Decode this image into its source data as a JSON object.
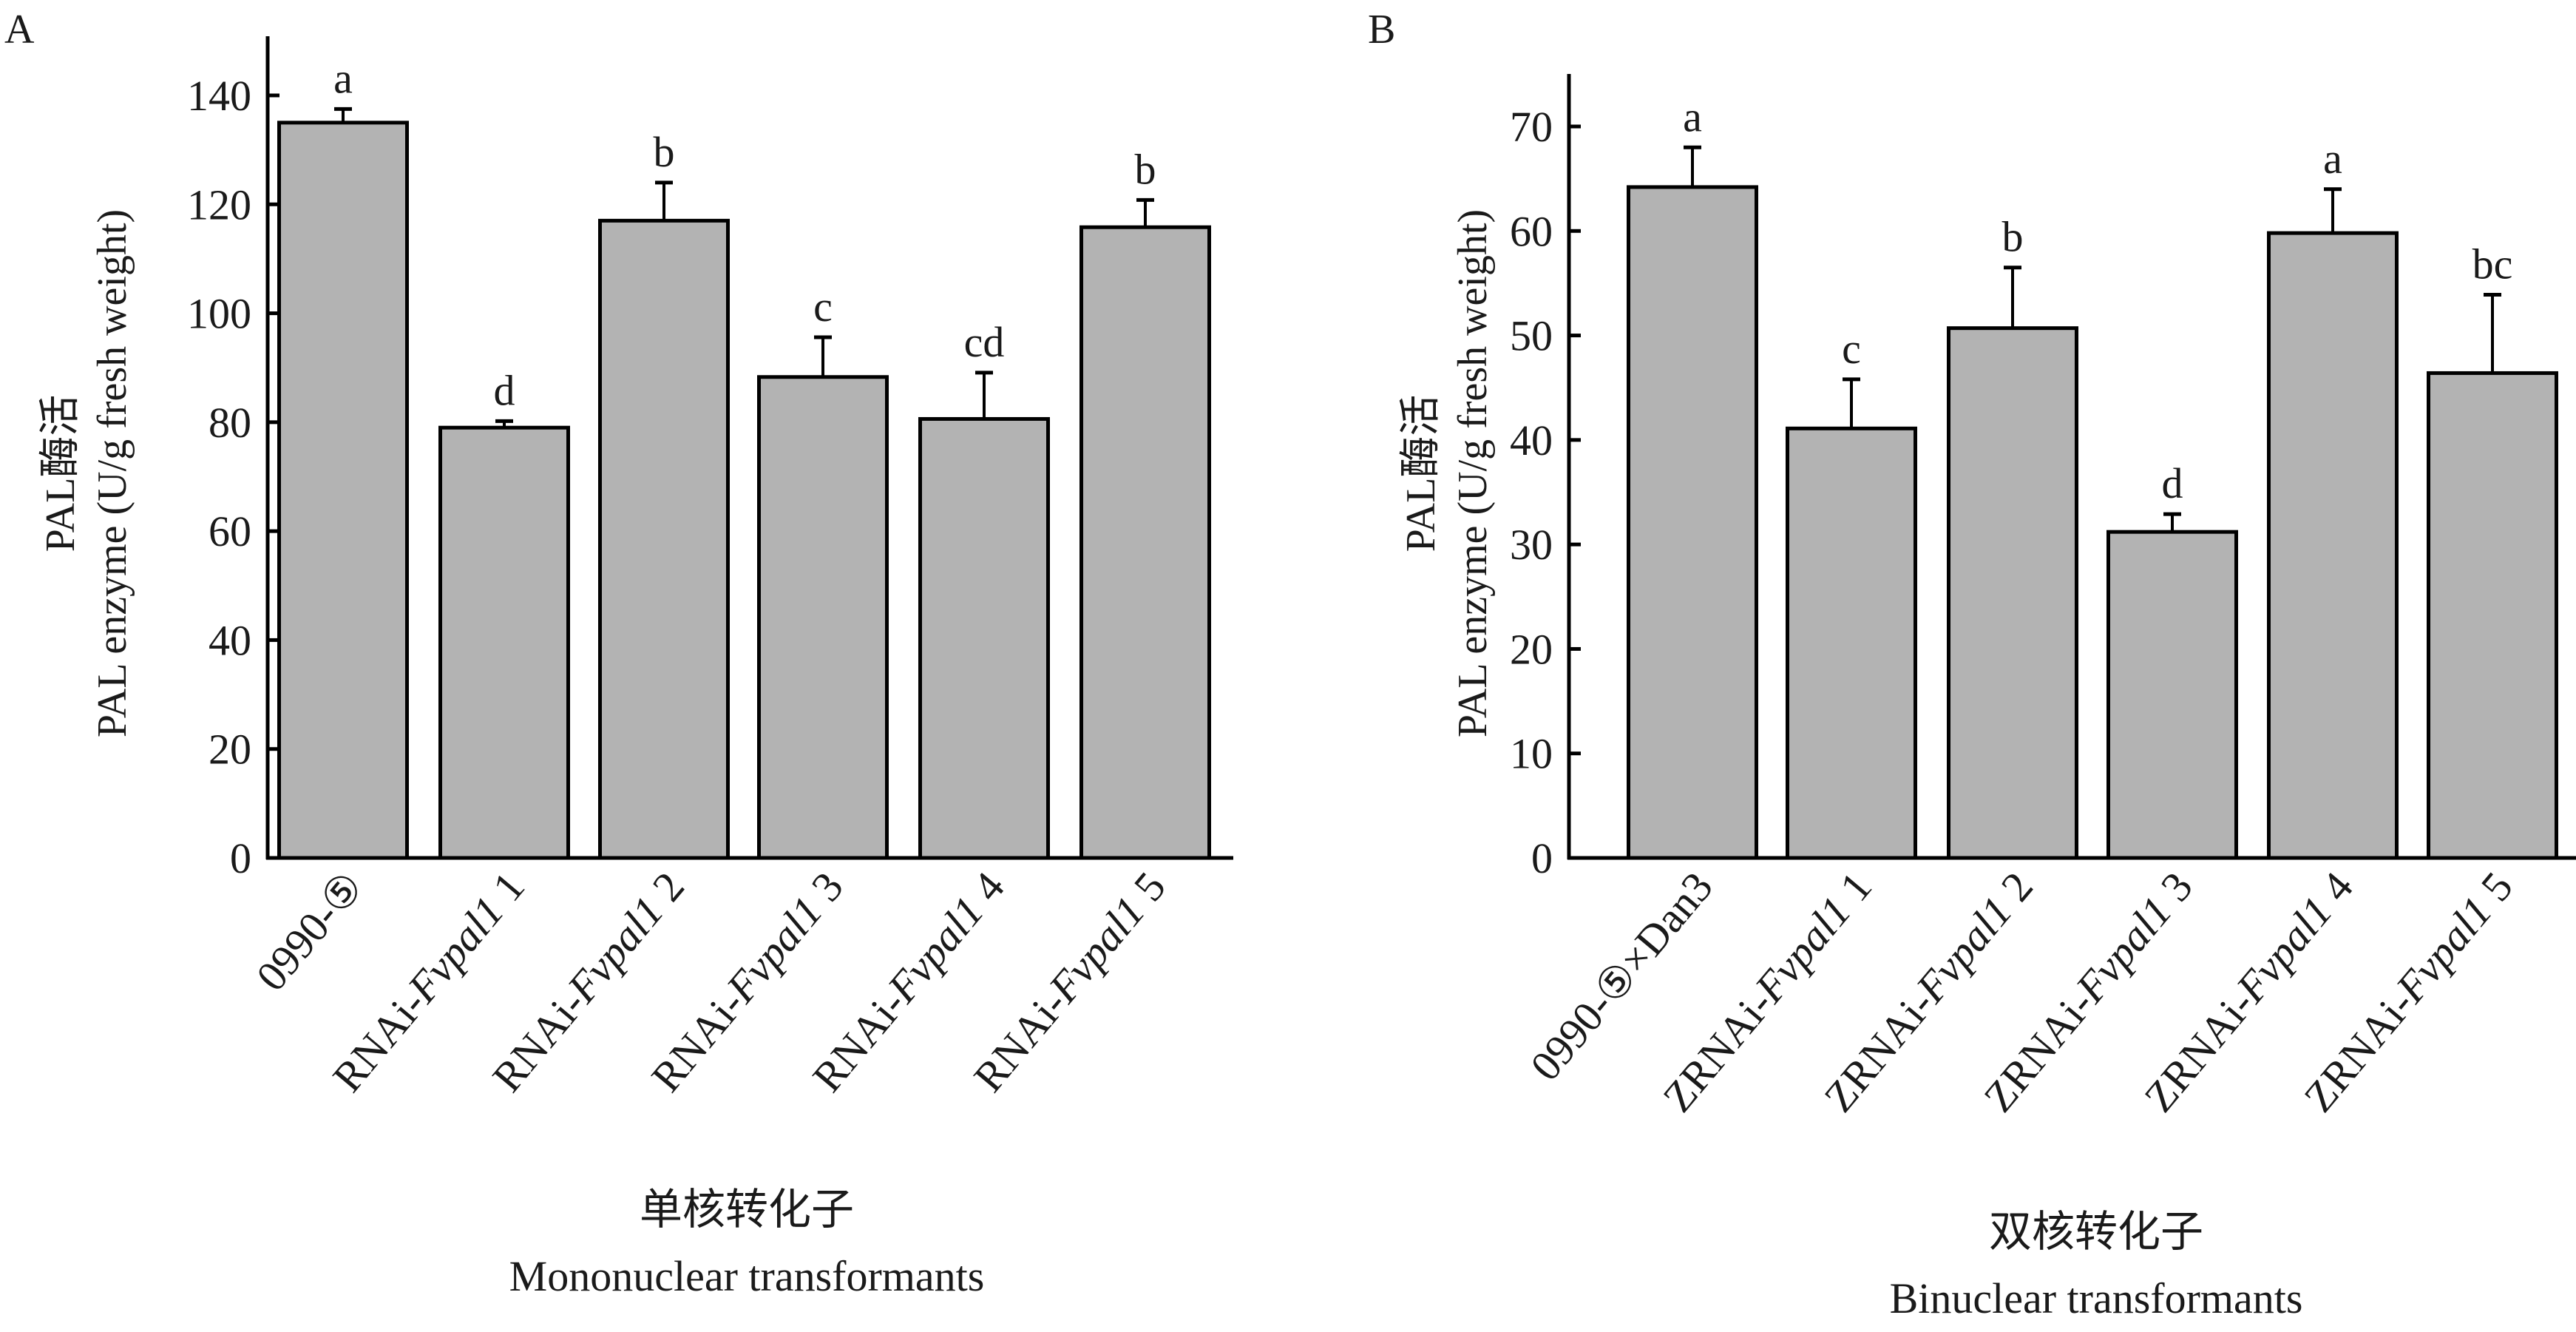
{
  "chart_data": [
    {
      "panel_label": "A",
      "type": "bar",
      "ylabel_cn": "PAL酶活",
      "ylabel_en": "PAL enzyme (U/g fresh weight)",
      "xlabel_cn": "单核转化子",
      "xlabel_en": "Mononuclear transformants",
      "ylim": [
        0,
        150
      ],
      "yticks": [
        0,
        20,
        40,
        60,
        80,
        100,
        120,
        140
      ],
      "grid": false,
      "bar_color": "#b3b3b3",
      "categories": [
        {
          "prefix": "0990-⑤",
          "italic": "",
          "suffix": ""
        },
        {
          "prefix": "RNAi-",
          "italic": "Fvpal1",
          "suffix": " 1"
        },
        {
          "prefix": "RNAi-",
          "italic": "Fvpal1",
          "suffix": " 2"
        },
        {
          "prefix": "RNAi-",
          "italic": "Fvpal1",
          "suffix": " 3"
        },
        {
          "prefix": "RNAi-",
          "italic": "Fvpal1",
          "suffix": " 4"
        },
        {
          "prefix": "RNAi-",
          "italic": "Fvpal1",
          "suffix": " 5"
        }
      ],
      "values": [
        135.0,
        79.0,
        117.0,
        88.3,
        80.6,
        115.8
      ],
      "errors": [
        2.5,
        1.2,
        7.0,
        7.3,
        8.5,
        5.0
      ],
      "significance": [
        "a",
        "d",
        "b",
        "c",
        "cd",
        "b"
      ]
    },
    {
      "panel_label": "B",
      "type": "bar",
      "ylabel_cn": "PAL酶活",
      "ylabel_en": "PAL enzyme (U/g fresh weight)",
      "xlabel_cn": "双核转化子",
      "xlabel_en": "Binuclear transformants",
      "ylim": [
        0,
        75
      ],
      "yticks": [
        0,
        10,
        20,
        30,
        40,
        50,
        60,
        70
      ],
      "grid": false,
      "bar_color": "#b3b3b3",
      "categories": [
        {
          "prefix": "0990-⑤×Dan3",
          "italic": "",
          "suffix": ""
        },
        {
          "prefix": "ZRNAi-",
          "italic": "Fvpal1",
          "suffix": " 1"
        },
        {
          "prefix": "ZRNAi-",
          "italic": "Fvpal1",
          "suffix": " 2"
        },
        {
          "prefix": "ZRNAi-",
          "italic": "Fvpal1",
          "suffix": " 3"
        },
        {
          "prefix": "ZRNAi-",
          "italic": "Fvpal1",
          "suffix": " 4"
        },
        {
          "prefix": "ZRNAi-",
          "italic": "Fvpal1",
          "suffix": " 5"
        }
      ],
      "values": [
        64.2,
        41.1,
        50.7,
        31.2,
        59.8,
        46.4
      ],
      "errors": [
        3.8,
        4.7,
        5.8,
        1.7,
        4.2,
        7.5
      ],
      "significance": [
        "a",
        "c",
        "b",
        "d",
        "a",
        "bc"
      ]
    }
  ]
}
